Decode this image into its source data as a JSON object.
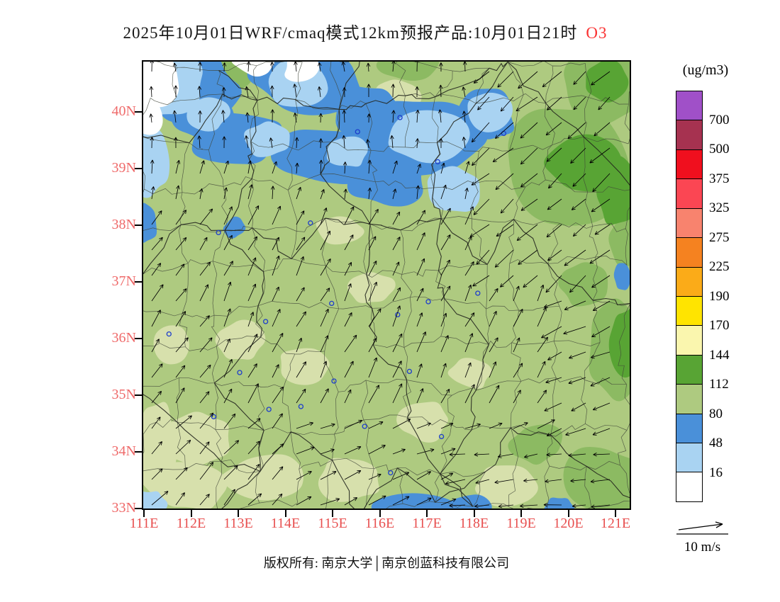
{
  "title": {
    "main": "2025年10月01日WRF/cmaq模式12km预报产品:10月01日21时",
    "pollutant": "O3"
  },
  "axes": {
    "y_labels": [
      "40N",
      "39N",
      "38N",
      "37N",
      "36N",
      "35N",
      "34N",
      "33N"
    ],
    "x_labels": [
      "111E",
      "112E",
      "113E",
      "114E",
      "115E",
      "116E",
      "117E",
      "118E",
      "119E",
      "120E",
      "121E"
    ],
    "y_color": "#ef6a6a",
    "x_color": "#e85050"
  },
  "legend": {
    "units": "(ug/m3)",
    "boundary_labels": [
      "700",
      "500",
      "375",
      "325",
      "275",
      "225",
      "190",
      "170",
      "144",
      "112",
      "80",
      "48",
      "16"
    ],
    "segment_colors_top_to_bottom": [
      "#a050c8",
      "#a63250",
      "#f00f1e",
      "#fb4653",
      "#f8836e",
      "#f58220",
      "#fbab18",
      "#ffe400",
      "#faf6ae",
      "#58a434",
      "#aeca80",
      "#4a90d9",
      "#a9d3f2",
      "#ffffff"
    ]
  },
  "wind_scale": {
    "label": "10 m/s"
  },
  "footer": {
    "copyright": "版权所有: 南京大学│南京创蓝科技有限公司"
  },
  "chart_data": {
    "type": "heatmap",
    "subtype": "filled-contour forecast map with wind vectors",
    "variable": "O3",
    "units": "ug/m3",
    "model": "WRF/cmaq 12km",
    "issue_date": "2025年10月01日",
    "valid_time": "10月01日21时",
    "lon_range_deg_e": [
      111,
      121.3
    ],
    "lat_range_deg_n": [
      33,
      40.9
    ],
    "contour_levels": [
      16,
      48,
      80,
      112,
      144,
      170,
      190,
      225,
      275,
      325,
      375,
      500,
      700
    ],
    "wind_reference_speed_ms": 10,
    "field_summary": [
      {
        "region": "most of domain 33N-38N",
        "o3_range": "80-112"
      },
      {
        "region": "band 38.5N-40.9N across 111E-118.5E",
        "o3_range": "16-80 (blue band, white/light-blue minima in northwest corner)"
      },
      {
        "region": "northeast area 119E-121.3E, 38N-40.9N",
        "o3_range": "112-144 (local green maximum)"
      },
      {
        "region": "east edge near 121E, 35N-36.5N and southeast corner 120E-121E, 33N-34N",
        "o3_range": "112-144"
      },
      {
        "region": "bottom edge patches 116E-118E and 119.8E near 33N",
        "o3_range": "16-80"
      }
    ],
    "wind_summary": [
      {
        "region": "center and south",
        "arrows": "toward north-northeast / northeast (southwesterly flow)"
      },
      {
        "region": "north of 38.5N",
        "arrows": "toward north, short arrows (weak)"
      },
      {
        "region": "northeast corner green area",
        "arrows": "long arrows toward southwest (northeasterly flow)"
      },
      {
        "region": "east edge 34N-37N and southeast corner",
        "arrows": "toward west / west-southwest"
      }
    ],
    "station_markers": "small open blue circles at major cities (e.g. near 116.4E 39.9N, 117.2E 39.1N, 114.5E 38.0N, 112.55E 37.9N, cluster along 34.3N-36.8N)"
  }
}
